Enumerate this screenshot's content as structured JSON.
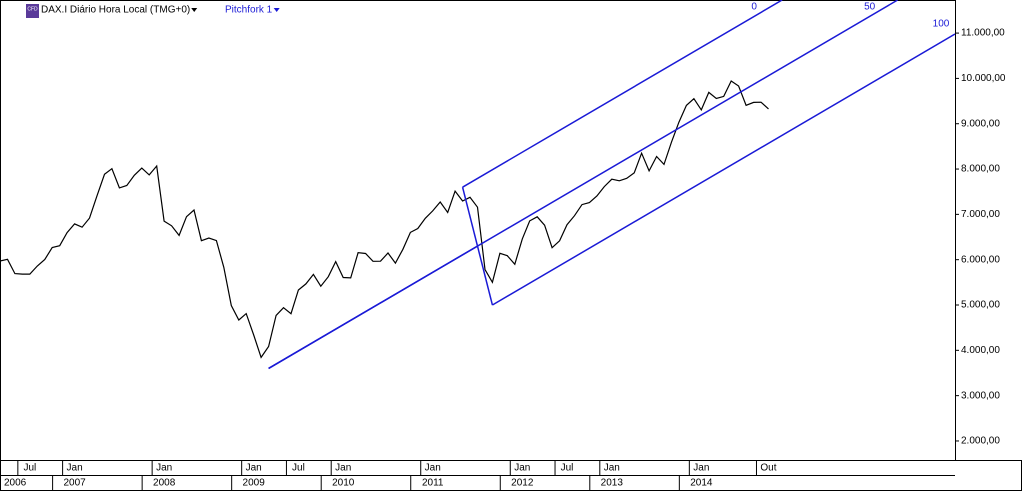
{
  "chart_data": {
    "type": "line",
    "title": "DAX.I Diário Hora Local (TMG+0)",
    "tool_label": "Pitchfork 1",
    "color": "#000000",
    "x": [
      "2006-03",
      "2006-04",
      "2006-05",
      "2006-06",
      "2006-07",
      "2006-08",
      "2006-09",
      "2006-10",
      "2006-11",
      "2006-12",
      "2007-01",
      "2007-02",
      "2007-03",
      "2007-04",
      "2007-05",
      "2007-06",
      "2007-07",
      "2007-08",
      "2007-09",
      "2007-10",
      "2007-11",
      "2007-12",
      "2008-01",
      "2008-02",
      "2008-03",
      "2008-04",
      "2008-05",
      "2008-06",
      "2008-07",
      "2008-08",
      "2008-09",
      "2008-10",
      "2008-11",
      "2008-12",
      "2009-01",
      "2009-02",
      "2009-03",
      "2009-04",
      "2009-05",
      "2009-06",
      "2009-07",
      "2009-08",
      "2009-09",
      "2009-10",
      "2009-11",
      "2009-12",
      "2010-01",
      "2010-02",
      "2010-03",
      "2010-04",
      "2010-05",
      "2010-06",
      "2010-07",
      "2010-08",
      "2010-09",
      "2010-10",
      "2010-11",
      "2010-12",
      "2011-01",
      "2011-02",
      "2011-03",
      "2011-04",
      "2011-05",
      "2011-06",
      "2011-07",
      "2011-08",
      "2011-09",
      "2011-10",
      "2011-11",
      "2011-12",
      "2012-01",
      "2012-02",
      "2012-03",
      "2012-04",
      "2012-05",
      "2012-06",
      "2012-07",
      "2012-08",
      "2012-09",
      "2012-10",
      "2012-11",
      "2012-12",
      "2013-01",
      "2013-02",
      "2013-03",
      "2013-04",
      "2013-05",
      "2013-06",
      "2013-07",
      "2013-08",
      "2013-09",
      "2013-10",
      "2013-11",
      "2013-12",
      "2014-01",
      "2014-02",
      "2014-03",
      "2014-04",
      "2014-05",
      "2014-06",
      "2014-07",
      "2014-08",
      "2014-09",
      "2014-10"
    ],
    "values": [
      5970,
      6009,
      5692,
      5683,
      5682,
      5860,
      6004,
      6269,
      6309,
      6597,
      6789,
      6716,
      6917,
      7409,
      7883,
      8007,
      7584,
      7638,
      7862,
      8020,
      7871,
      8067,
      6852,
      6748,
      6535,
      6949,
      7097,
      6418,
      6479,
      6422,
      5831,
      4988,
      4669,
      4810,
      4338,
      3843,
      4085,
      4770,
      4941,
      4809,
      5332,
      5465,
      5675,
      5415,
      5625,
      5957,
      5608,
      5598,
      6154,
      6136,
      5965,
      5966,
      6148,
      5925,
      6229,
      6601,
      6688,
      6914,
      7077,
      7272,
      7041,
      7514,
      7294,
      7376,
      7159,
      5784,
      5502,
      6141,
      6089,
      5898,
      6458,
      6856,
      6947,
      6761,
      6264,
      6416,
      6772,
      6970,
      7216,
      7260,
      7405,
      7612,
      7776,
      7741,
      7795,
      7914,
      8349,
      7959,
      8276,
      8103,
      8594,
      9033,
      9405,
      9552,
      9306,
      9692,
      9556,
      9603,
      9943,
      9833,
      9407,
      9470,
      9474,
      9326
    ],
    "xlim": [
      "2006-03",
      "2016-11"
    ],
    "ylim": [
      1580,
      11730
    ],
    "yticks": [
      {
        "value": 2000,
        "label": "2.000,00"
      },
      {
        "value": 3000,
        "label": "3.000,00"
      },
      {
        "value": 4000,
        "label": "4.000,00"
      },
      {
        "value": 5000,
        "label": "5.000,00"
      },
      {
        "value": 6000,
        "label": "6.000,00"
      },
      {
        "value": 7000,
        "label": "7.000,00"
      },
      {
        "value": 8000,
        "label": "8.000,00"
      },
      {
        "value": 9000,
        "label": "9.000,00"
      },
      {
        "value": 10000,
        "label": "10.000,00"
      },
      {
        "value": 11000,
        "label": "11.000,00"
      }
    ],
    "xticks": [
      {
        "value": "2006-07",
        "label": "Jul"
      },
      {
        "value": "2007-01",
        "label": "Jan"
      },
      {
        "value": "2008-01",
        "label": "Jan"
      },
      {
        "value": "2009-01",
        "label": "Jan"
      },
      {
        "value": "2009-07",
        "label": "Jul"
      },
      {
        "value": "2010-01",
        "label": "Jan"
      },
      {
        "value": "2011-01",
        "label": "Jan"
      },
      {
        "value": "2012-01",
        "label": "Jan"
      },
      {
        "value": "2012-07",
        "label": "Jul"
      },
      {
        "value": "2013-01",
        "label": "Jan"
      },
      {
        "value": "2014-01",
        "label": "Jan"
      },
      {
        "value": "2014-10",
        "label": "Out"
      }
    ],
    "year_ticks": [
      {
        "value": "2006-03",
        "label": "2006"
      },
      {
        "value": "2007-01",
        "label": "2007"
      },
      {
        "value": "2008-01",
        "label": "2008"
      },
      {
        "value": "2009-01",
        "label": "2009"
      },
      {
        "value": "2010-01",
        "label": "2010"
      },
      {
        "value": "2011-01",
        "label": "2011"
      },
      {
        "value": "2012-01",
        "label": "2012"
      },
      {
        "value": "2013-01",
        "label": "2013"
      },
      {
        "value": "2014-01",
        "label": "2014"
      }
    ],
    "pitchfork": {
      "color": "#1a1ad6",
      "points": [
        {
          "x": "2009-03",
          "y": 3600
        },
        {
          "x": "2011-05",
          "y": 7600
        },
        {
          "x": "2011-09",
          "y": 5000
        }
      ],
      "labels": [
        "0",
        "50",
        "100"
      ]
    }
  }
}
